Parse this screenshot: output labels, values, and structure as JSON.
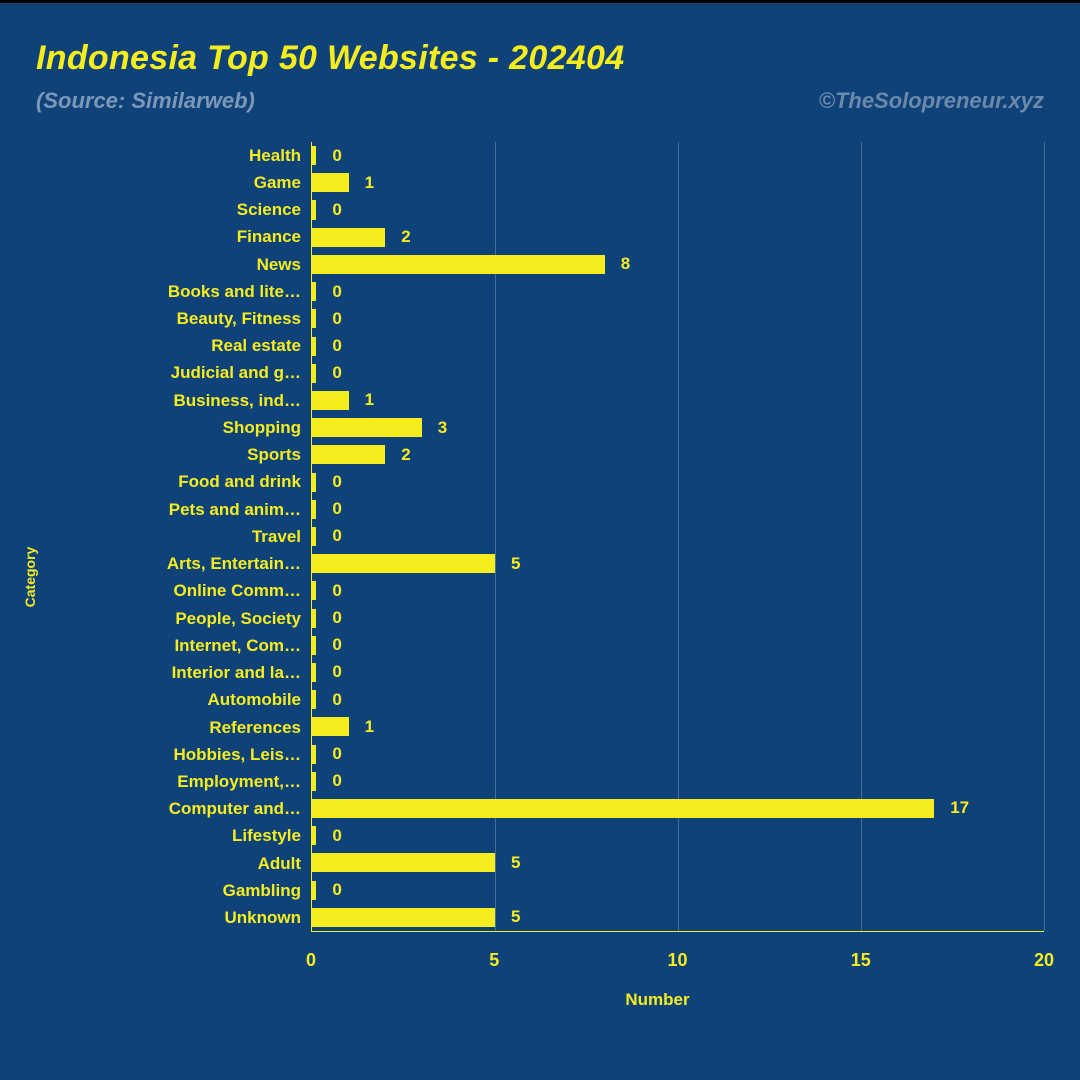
{
  "colors": {
    "background": "#10427a",
    "accent": "#f5ec1e",
    "muted": "#7c98b7",
    "muted2": "#6a89ab",
    "grid": "#446d9a",
    "axis": "#f5ec1e",
    "topbar": "#000000"
  },
  "title": {
    "text": "Indonesia Top 50 Websites - 202404",
    "fontsize": 34,
    "color": "#f5ec1e"
  },
  "source": {
    "text": "(Source: Similarweb)",
    "fontsize": 22,
    "color": "#7c98b7"
  },
  "credit": {
    "text": "©TheSolopreneur.xyz",
    "fontsize": 22,
    "color": "#6a89ab"
  },
  "chart": {
    "type": "horizontal-bar",
    "xaxis": {
      "label": "Number",
      "min": 0,
      "max": 20,
      "ticks": [
        0,
        5,
        10,
        15,
        20
      ],
      "label_fontsize": 17,
      "tick_fontsize": 18,
      "color": "#f5ec1e",
      "grid_color": "#446d9a"
    },
    "yaxis": {
      "label": "Category",
      "label_fontsize": 14,
      "tick_fontsize": 17,
      "color": "#f5ec1e"
    },
    "bar_color": "#f5ec1e",
    "value_label_color": "#f5ec1e",
    "value_label_fontsize": 17,
    "bar_height_ratio": 0.7,
    "categories": [
      {
        "label": "Health",
        "value": 0
      },
      {
        "label": "Game",
        "value": 1
      },
      {
        "label": "Science",
        "value": 0
      },
      {
        "label": "Finance",
        "value": 2
      },
      {
        "label": "News",
        "value": 8
      },
      {
        "label": "Books and lite…",
        "value": 0
      },
      {
        "label": "Beauty, Fitness",
        "value": 0
      },
      {
        "label": "Real estate",
        "value": 0
      },
      {
        "label": "Judicial and g…",
        "value": 0
      },
      {
        "label": "Business, ind…",
        "value": 1
      },
      {
        "label": "Shopping",
        "value": 3
      },
      {
        "label": "Sports",
        "value": 2
      },
      {
        "label": "Food and drink",
        "value": 0
      },
      {
        "label": "Pets and anim…",
        "value": 0
      },
      {
        "label": "Travel",
        "value": 0
      },
      {
        "label": "Arts, Entertain…",
        "value": 5
      },
      {
        "label": "Online Comm…",
        "value": 0
      },
      {
        "label": "People, Society",
        "value": 0
      },
      {
        "label": "Internet, Com…",
        "value": 0
      },
      {
        "label": "Interior and la…",
        "value": 0
      },
      {
        "label": "Automobile",
        "value": 0
      },
      {
        "label": "References",
        "value": 1
      },
      {
        "label": "Hobbies, Leis…",
        "value": 0
      },
      {
        "label": "Employment,…",
        "value": 0
      },
      {
        "label": "Computer and…",
        "value": 17
      },
      {
        "label": "Lifestyle",
        "value": 0
      },
      {
        "label": "Adult",
        "value": 5
      },
      {
        "label": "Gambling",
        "value": 0
      },
      {
        "label": "Unknown",
        "value": 5
      }
    ]
  }
}
